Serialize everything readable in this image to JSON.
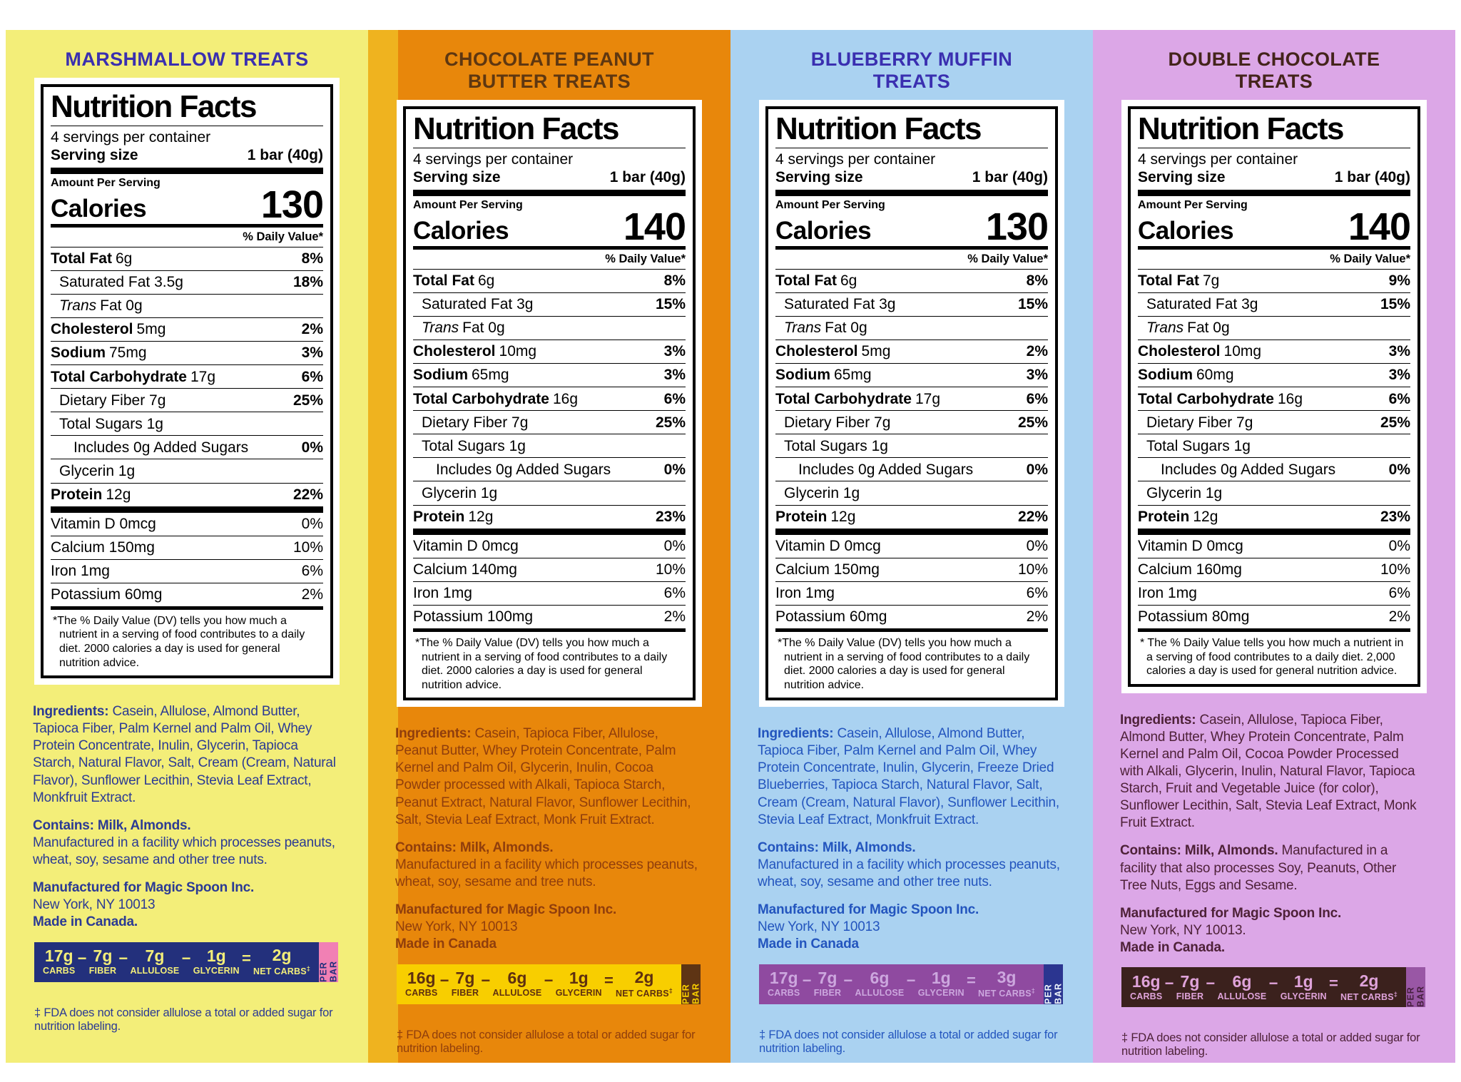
{
  "shared": {
    "nutrition_title": "Nutrition Facts",
    "servings": "4 servings per container",
    "serving_size_label": "Serving size",
    "amount_per_serving": "Amount Per Serving",
    "calories_label": "Calories",
    "dv_header": "% Daily Value*",
    "per_bar": "PER BAR",
    "minus": "−",
    "equals": "="
  },
  "panels": [
    {
      "id": "marshmallow",
      "title": "MARSHMALLOW TREATS",
      "colors": {
        "bg": "#F3EE79",
        "title": "#3A2FB0",
        "ink": "#2B3A94",
        "bar_bg": "#23307C",
        "bar_text": "#F3EE79",
        "tab_bg": "#F180B4",
        "tab_text": "#23307C"
      },
      "serving_size_value": "1 bar (40g)",
      "calories": "130",
      "rows": [
        {
          "b": "Total Fat",
          "t": "6g",
          "dv": "8%"
        },
        {
          "t": "Saturated Fat 3.5g",
          "dv": "18%",
          "cls": "ind"
        },
        {
          "i": "Trans",
          "t": "Fat 0g",
          "cls": "ind"
        },
        {
          "b": "Cholesterol",
          "t": "5mg",
          "dv": "2%"
        },
        {
          "b": "Sodium",
          "t": "75mg",
          "dv": "3%"
        },
        {
          "b": "Total Carbohydrate",
          "t": "17g",
          "dv": "6%"
        },
        {
          "t": "Dietary Fiber 7g",
          "dv": "25%",
          "cls": "ind"
        },
        {
          "t": "Total Sugars 1g",
          "cls": "ind"
        },
        {
          "t": "Includes 0g Added Sugars",
          "dv": "0%",
          "cls": "ind2"
        },
        {
          "t": "Glycerin 1g",
          "cls": "ind"
        },
        {
          "b": "Protein",
          "t": "12g",
          "dv": "22%"
        }
      ],
      "micros": [
        {
          "t": "Vitamin D 0mcg",
          "dv": "0%"
        },
        {
          "t": "Calcium 150mg",
          "dv": "10%"
        },
        {
          "t": "Iron 1mg",
          "dv": "6%"
        },
        {
          "t": "Potassium 60mg",
          "dv": "2%"
        }
      ],
      "dv_footnote": "*The % Daily Value (DV) tells you how much a nutrient in a serving of food contributes to a daily diet. 2000 calories a day is used for general nutrition advice.",
      "ingredients_label": "Ingredients:",
      "ingredients": "Casein, Allulose, Almond Butter, Tapioca Fiber, Palm Kernel and Palm Oil, Whey Protein Concentrate, Inulin, Glycerin, Tapioca Starch, Natural Flavor, Salt, Cream (Cream, Natural Flavor), Sunflower Lecithin, Stevia Leaf Extract, Monkfruit Extract.",
      "contains": "Contains: Milk, Almonds.",
      "facility": "Manufactured in a facility which processes peanuts, wheat, soy, sesame and other tree nuts.",
      "contains_inline": false,
      "manufactured_for": "Manufactured for Magic Spoon Inc.",
      "address": "New York, NY 10013",
      "made_in": "Made in Canada.",
      "macro": {
        "terms": [
          {
            "v": "17g",
            "l": "CARBS"
          },
          {
            "v": "7g",
            "l": "FIBER"
          },
          {
            "v": "7g",
            "l": "ALLULOSE"
          },
          {
            "v": "1g",
            "l": "GLYCERIN"
          }
        ],
        "result": {
          "v": "2g",
          "l": "NET CARBS"
        },
        "dagger": "‡"
      },
      "fda_note": "‡ FDA does not consider allulose a total or added sugar for nutrition labeling."
    },
    {
      "id": "chocolate-peanut-butter",
      "title": "CHOCOLATE PEANUT BUTTER TREATS",
      "colors": {
        "bg": "#E8870B",
        "edge": "#EFB31F",
        "title": "#5E3711",
        "ink": "#903E0C",
        "bar_bg": "#F8CE00",
        "bar_text": "#5E2F10",
        "tab_bg": "#5E3414",
        "tab_text": "#F8CE00"
      },
      "serving_size_value": "1 bar (40g)",
      "calories": "140",
      "rows": [
        {
          "b": "Total Fat",
          "t": "6g",
          "dv": "8%"
        },
        {
          "t": "Saturated Fat 3g",
          "dv": "15%",
          "cls": "ind"
        },
        {
          "i": "Trans",
          "t": "Fat 0g",
          "cls": "ind"
        },
        {
          "b": "Cholesterol",
          "t": "10mg",
          "dv": "3%"
        },
        {
          "b": "Sodium",
          "t": "65mg",
          "dv": "3%"
        },
        {
          "b": "Total Carbohydrate",
          "t": "16g",
          "dv": "6%"
        },
        {
          "t": "Dietary Fiber 7g",
          "dv": "25%",
          "cls": "ind"
        },
        {
          "t": "Total Sugars 1g",
          "cls": "ind"
        },
        {
          "t": "Includes 0g Added Sugars",
          "dv": "0%",
          "cls": "ind2"
        },
        {
          "t": "Glycerin 1g",
          "cls": "ind"
        },
        {
          "b": "Protein",
          "t": "12g",
          "dv": "23%"
        }
      ],
      "micros": [
        {
          "t": "Vitamin D 0mcg",
          "dv": "0%"
        },
        {
          "t": "Calcium 140mg",
          "dv": "10%"
        },
        {
          "t": "Iron 1mg",
          "dv": "6%"
        },
        {
          "t": "Potassium 100mg",
          "dv": "2%"
        }
      ],
      "dv_footnote": "*The % Daily Value (DV) tells you how much a nutrient in a serving of food contributes to a daily diet. 2000 calories a day is used for general nutrition advice.",
      "ingredients_label": "Ingredients:",
      "ingredients": "Casein, Tapioca Fiber, Allulose, Peanut Butter, Whey Protein Concentrate, Palm Kernel and Palm Oil, Glycerin, Inulin, Cocoa Powder processed with Alkali, Tapioca Starch, Peanut Extract, Natural Flavor, Sunflower Lecithin, Salt, Stevia Leaf Extract, Monk Fruit Extract.",
      "contains": "Contains: Milk, Almonds.",
      "facility": "Manufactured in a facility which processes peanuts, wheat, soy, sesame and tree nuts.",
      "contains_inline": false,
      "manufactured_for": "Manufactured for Magic Spoon Inc.",
      "address": "New York, NY 10013",
      "made_in": "Made in Canada",
      "macro": {
        "terms": [
          {
            "v": "16g",
            "l": "CARBS"
          },
          {
            "v": "7g",
            "l": "FIBER"
          },
          {
            "v": "6g",
            "l": "ALLULOSE"
          },
          {
            "v": "1g",
            "l": "GLYCERIN"
          }
        ],
        "result": {
          "v": "2g",
          "l": "NET CARBS"
        },
        "dagger": "‡"
      },
      "fda_note": "‡ FDA does not consider allulose a total or added sugar for nutrition labeling."
    },
    {
      "id": "blueberry-muffin",
      "title": "BLUEBERRY MUFFIN TREATS",
      "colors": {
        "bg": "#AAD2F1",
        "title": "#3A2FB0",
        "ink": "#2355BE",
        "bar_bg": "#8F4AA0",
        "bar_text": "#CCA7DE",
        "tab_bg": "#2B3590",
        "tab_text": "#EDF3FA"
      },
      "serving_size_value": "1 bar (40g)",
      "calories": "130",
      "rows": [
        {
          "b": "Total Fat",
          "t": "6g",
          "dv": "8%"
        },
        {
          "t": "Saturated Fat 3g",
          "dv": "15%",
          "cls": "ind"
        },
        {
          "i": "Trans",
          "t": "Fat 0g",
          "cls": "ind"
        },
        {
          "b": "Cholesterol",
          "t": "5mg",
          "dv": "2%"
        },
        {
          "b": "Sodium",
          "t": "65mg",
          "dv": "3%"
        },
        {
          "b": "Total Carbohydrate",
          "t": "17g",
          "dv": "6%"
        },
        {
          "t": "Dietary Fiber 7g",
          "dv": "25%",
          "cls": "ind"
        },
        {
          "t": "Total Sugars 1g",
          "cls": "ind"
        },
        {
          "t": "Includes 0g Added Sugars",
          "dv": "0%",
          "cls": "ind2"
        },
        {
          "t": "Glycerin 1g",
          "cls": "ind"
        },
        {
          "b": "Protein",
          "t": "12g",
          "dv": "22%"
        }
      ],
      "micros": [
        {
          "t": "Vitamin D 0mcg",
          "dv": "0%"
        },
        {
          "t": "Calcium 150mg",
          "dv": "10%"
        },
        {
          "t": "Iron 1mg",
          "dv": "6%"
        },
        {
          "t": "Potassium 60mg",
          "dv": "2%"
        }
      ],
      "dv_footnote": "*The % Daily Value (DV) tells you how much a nutrient in a serving of food contributes to a daily diet. 2000 calories a day is used for general nutrition advice.",
      "ingredients_label": "Ingredients:",
      "ingredients": "Casein, Allulose, Almond Butter, Tapioca Fiber, Palm Kernel and Palm Oil, Whey Protein Concentrate, Inulin, Glycerin, Freeze Dried Blueberries, Tapioca Starch, Natural Flavor, Salt, Cream (Cream, Natural Flavor), Sunflower Lecithin, Stevia Leaf Extract, Monkfruit Extract.",
      "contains": "Contains: Milk, Almonds.",
      "facility": "Manufactured in a facility which processes peanuts, wheat, soy, sesame and other tree nuts.",
      "contains_inline": false,
      "manufactured_for": "Manufactured for Magic Spoon Inc.",
      "address": "New York, NY 10013",
      "made_in": "Made in Canada",
      "macro": {
        "terms": [
          {
            "v": "17g",
            "l": "CARBS"
          },
          {
            "v": "7g",
            "l": "FIBER"
          },
          {
            "v": "6g",
            "l": "ALLULOSE"
          },
          {
            "v": "1g",
            "l": "GLYCERIN"
          }
        ],
        "result": {
          "v": "3g",
          "l": "NET CARBS"
        },
        "dagger": "‡"
      },
      "fda_note": "‡ FDA does not consider allulose a total or added sugar for nutrition labeling."
    },
    {
      "id": "double-chocolate",
      "title": "DOUBLE CHOCOLATE TREATS",
      "colors": {
        "bg": "#DCA7E7",
        "title": "#44241B",
        "ink": "#4E2138",
        "bar_bg": "#3B211D",
        "bar_text": "#DFA3DA",
        "tab_bg": "#9957A5",
        "tab_text": "#47203F"
      },
      "serving_size_value": "1 bar (40g)",
      "calories": "140",
      "rows": [
        {
          "b": "Total Fat",
          "t": "7g",
          "dv": "9%"
        },
        {
          "t": "Saturated Fat 3g",
          "dv": "15%",
          "cls": "ind"
        },
        {
          "i": "Trans",
          "t": "Fat 0g",
          "cls": "ind"
        },
        {
          "b": "Cholesterol",
          "t": "10mg",
          "dv": "3%"
        },
        {
          "b": "Sodium",
          "t": "60mg",
          "dv": "3%"
        },
        {
          "b": "Total Carbohydrate",
          "t": "16g",
          "dv": "6%"
        },
        {
          "t": "Dietary Fiber 7g",
          "dv": "25%",
          "cls": "ind"
        },
        {
          "t": "Total Sugars 1g",
          "cls": "ind"
        },
        {
          "t": "Includes 0g Added Sugars",
          "dv": "0%",
          "cls": "ind2"
        },
        {
          "t": "Glycerin 1g",
          "cls": "ind"
        },
        {
          "b": "Protein",
          "t": "12g",
          "dv": "23%"
        }
      ],
      "micros": [
        {
          "t": "Vitamin D 0mcg",
          "dv": "0%"
        },
        {
          "t": "Calcium 160mg",
          "dv": "10%"
        },
        {
          "t": "Iron 1mg",
          "dv": "6%"
        },
        {
          "t": "Potassium 80mg",
          "dv": "2%"
        }
      ],
      "dv_footnote": "* The % Daily Value tells you how much a nutrient in a serving of food contributes to a daily diet. 2,000 calories a day is used for general nutrition advice.",
      "ingredients_label": "Ingredients:",
      "ingredients": "Casein, Allulose, Tapioca Fiber, Almond Butter, Whey Protein Concentrate, Palm Kernel and Palm Oil, Cocoa Powder Processed with Alkali, Glycerin, Inulin, Natural Flavor, Tapioca Starch, Fruit and Vegetable Juice (for color), Sunflower Lecithin, Salt, Stevia Leaf Extract, Monk Fruit Extract.",
      "contains": "Contains: Milk, Almonds.",
      "facility": "Manufactured in a facility that also processes Soy, Peanuts, Other Tree Nuts, Eggs and Sesame.",
      "contains_inline": true,
      "manufactured_for": "Manufactured for Magic Spoon Inc.",
      "address": "New York, NY 10013.",
      "made_in": "Made in Canada.",
      "macro": {
        "terms": [
          {
            "v": "16g",
            "l": "CARBS"
          },
          {
            "v": "7g",
            "l": "FIBER"
          },
          {
            "v": "6g",
            "l": "ALLULOSE"
          },
          {
            "v": "1g",
            "l": "GLYCERIN"
          }
        ],
        "result": {
          "v": "2g",
          "l": "NET CARBS"
        },
        "dagger": "‡"
      },
      "fda_note": "‡ FDA does not consider allulose a total or added sugar for nutrition labeling."
    }
  ]
}
